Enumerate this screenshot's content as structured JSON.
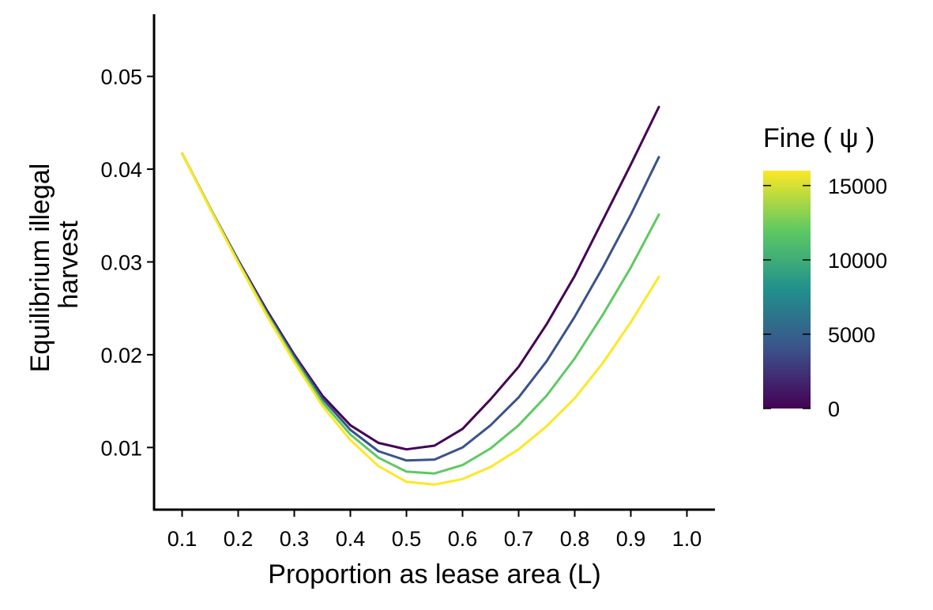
{
  "chart_data": {
    "type": "line",
    "xlabel": "Proportion as lease area (L)",
    "ylabel_lines": [
      "Equilibrium illegal",
      "harvest"
    ],
    "xlim": [
      0.05,
      1.05
    ],
    "ylim": [
      0.0033,
      0.0567
    ],
    "x_ticks": [
      0.1,
      0.2,
      0.3,
      0.4,
      0.5,
      0.6,
      0.7,
      0.8,
      0.9,
      1.0
    ],
    "x_tick_labels": [
      "0.1",
      "0.2",
      "0.3",
      "0.4",
      "0.5",
      "0.6",
      "0.7",
      "0.8",
      "0.9",
      "1.0"
    ],
    "y_ticks": [
      0.01,
      0.02,
      0.03,
      0.04,
      0.05
    ],
    "y_tick_labels": [
      "0.01",
      "0.02",
      "0.03",
      "0.04",
      "0.05"
    ],
    "grid": false,
    "x": [
      0.1,
      0.15,
      0.2,
      0.25,
      0.3,
      0.35,
      0.4,
      0.45,
      0.5,
      0.55,
      0.6,
      0.65,
      0.7,
      0.75,
      0.8,
      0.85,
      0.9,
      0.95
    ],
    "series": [
      {
        "fine": 0,
        "color": "#440154",
        "values": [
          0.0417,
          0.0358,
          0.0302,
          0.0249,
          0.02,
          0.0156,
          0.0124,
          0.0105,
          0.0098,
          0.0102,
          0.012,
          0.0152,
          0.0187,
          0.0233,
          0.0285,
          0.0345,
          0.0405,
          0.0467
        ]
      },
      {
        "fine": 5000,
        "color": "#3b528b",
        "values": [
          0.0417,
          0.0358,
          0.0301,
          0.0247,
          0.0198,
          0.0153,
          0.0119,
          0.0096,
          0.0086,
          0.0087,
          0.01,
          0.0124,
          0.0154,
          0.0193,
          0.0241,
          0.0294,
          0.0351,
          0.0413
        ]
      },
      {
        "fine": 10000,
        "color": "#5ec962",
        "values": [
          0.0417,
          0.0358,
          0.03,
          0.0245,
          0.0195,
          0.0149,
          0.0114,
          0.0089,
          0.0074,
          0.0072,
          0.0081,
          0.0099,
          0.0124,
          0.0156,
          0.0196,
          0.0243,
          0.0294,
          0.0351
        ]
      },
      {
        "fine": 15000,
        "color": "#fde725",
        "values": [
          0.0417,
          0.0357,
          0.0299,
          0.0243,
          0.0192,
          0.0145,
          0.0108,
          0.008,
          0.0063,
          0.006,
          0.0066,
          0.0079,
          0.0098,
          0.0123,
          0.0153,
          0.0191,
          0.0235,
          0.0284
        ]
      }
    ],
    "legend": {
      "title": "Fine ( ψ )",
      "placement": "right",
      "type": "colorbar",
      "min": 0,
      "max": 16000,
      "tick_values": [
        0,
        5000,
        10000,
        15000
      ],
      "tick_labels": [
        "0",
        "5000",
        "10000",
        "15000"
      ],
      "colors": [
        "#440154",
        "#3b528b",
        "#21908c",
        "#5ec962",
        "#fde725"
      ]
    }
  }
}
